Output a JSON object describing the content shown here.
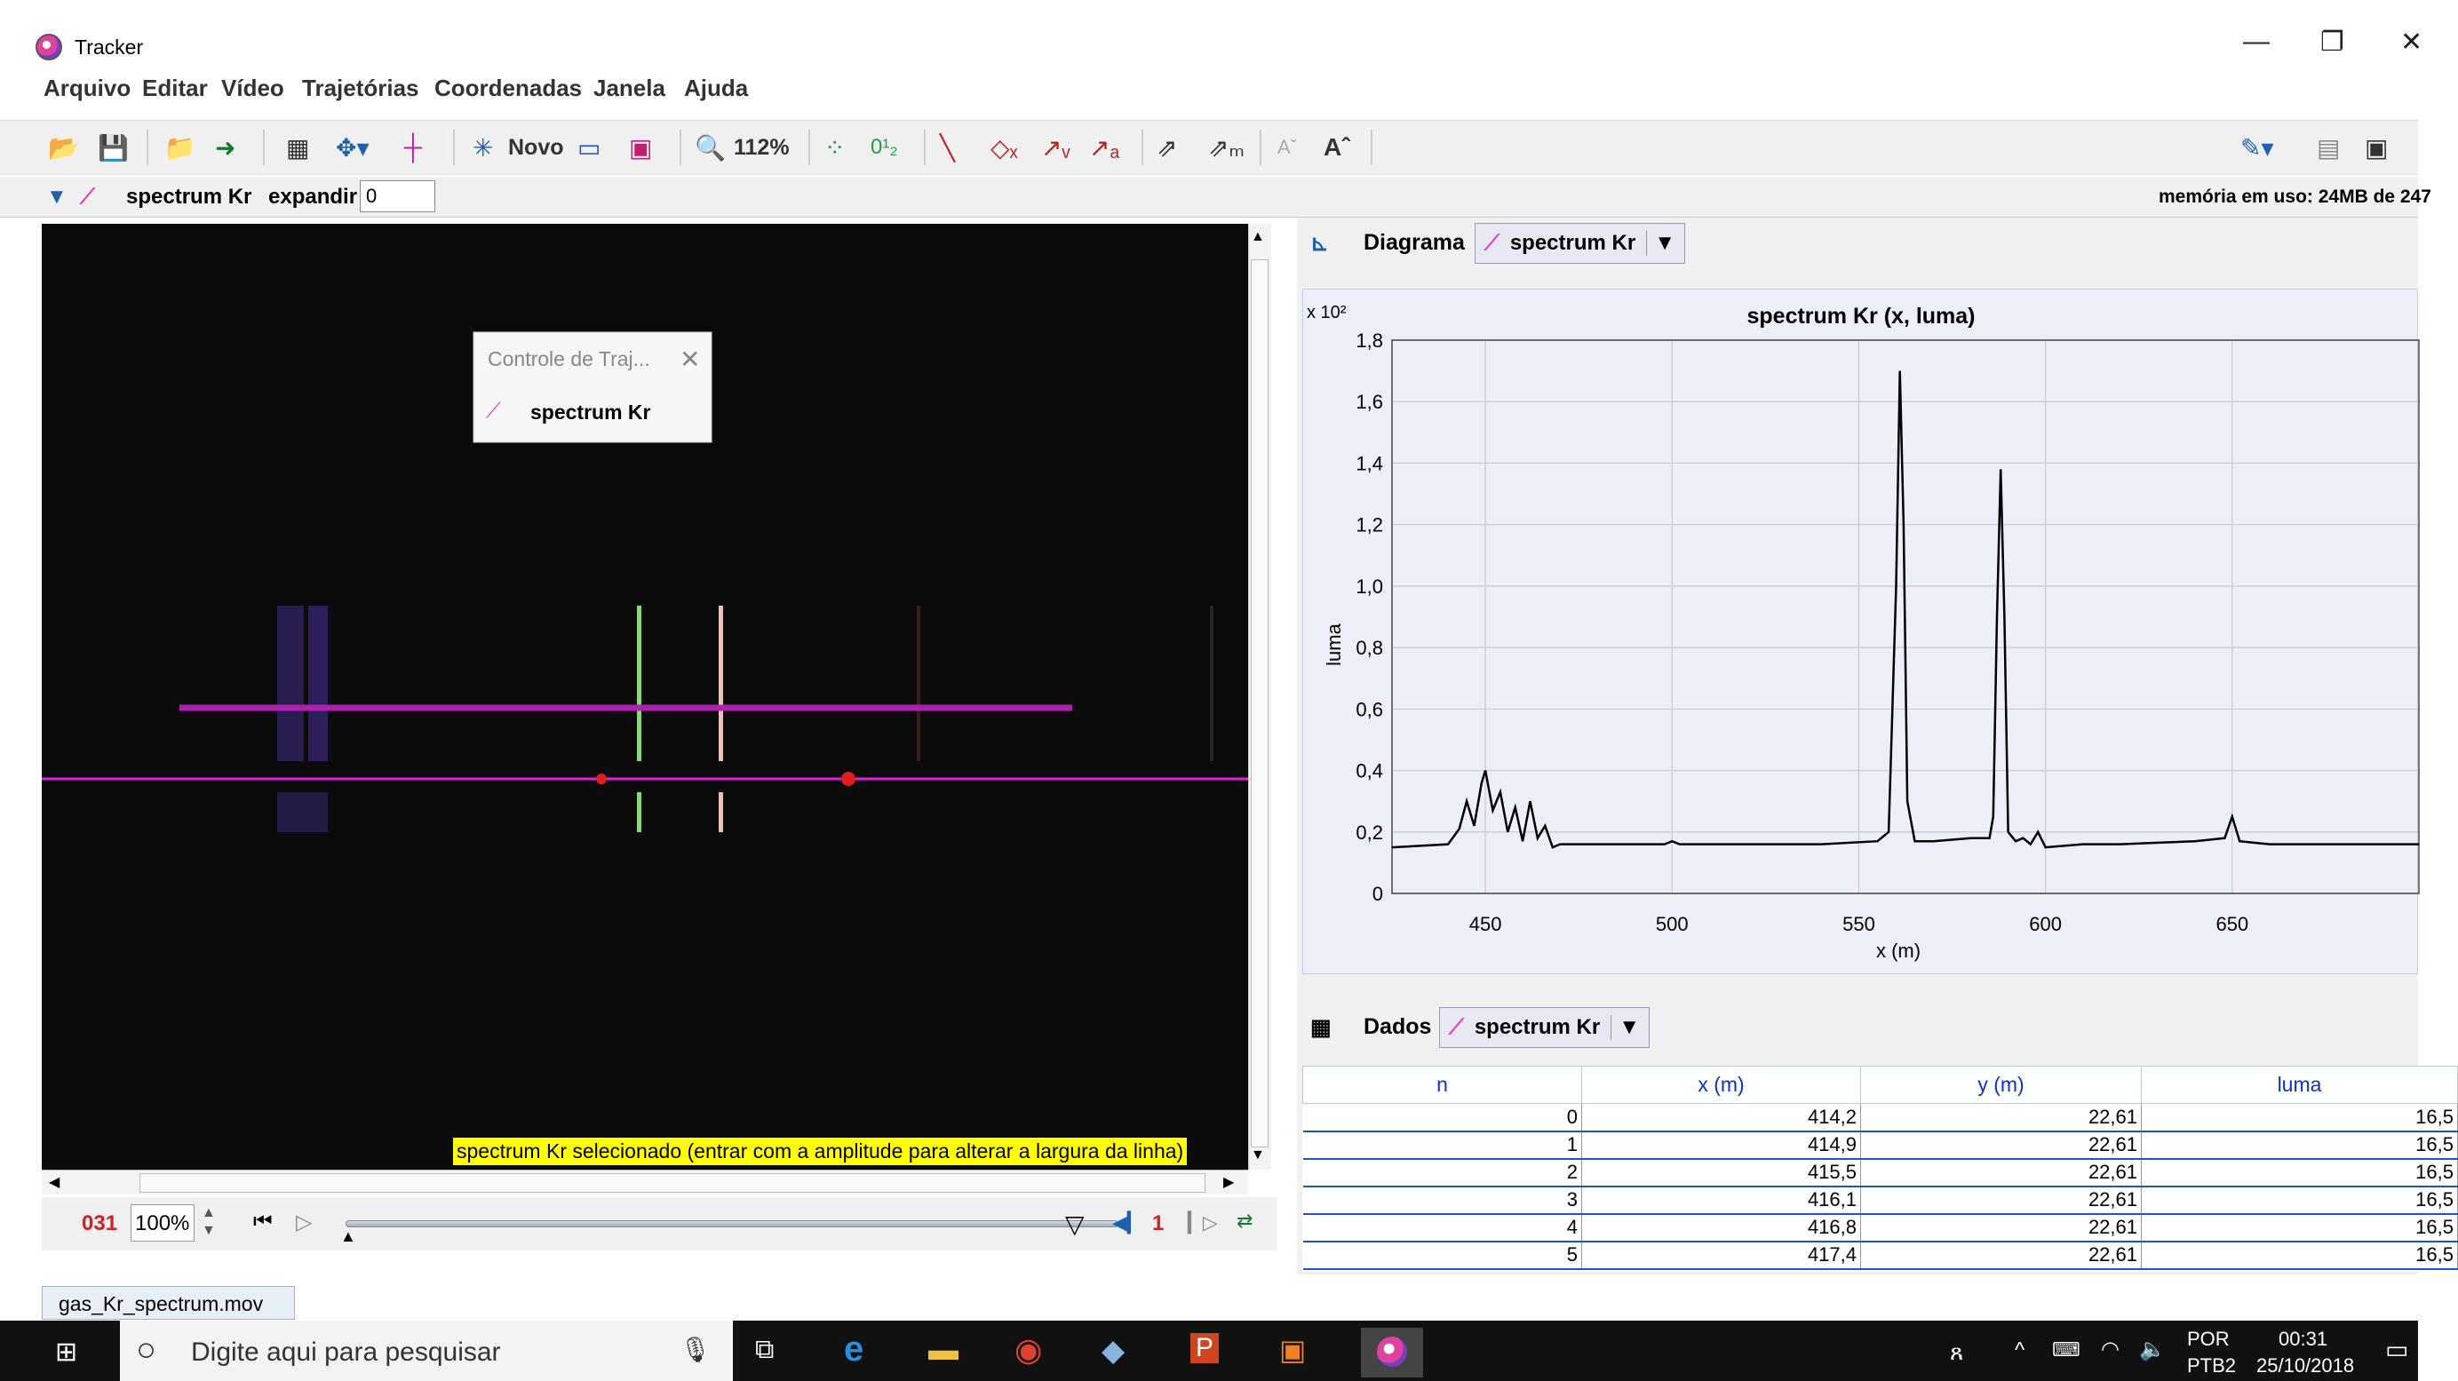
{
  "window": {
    "title": "Tracker",
    "minimize_icon": "—",
    "restore_icon": "❐",
    "close_icon": "✕"
  },
  "menu": [
    "Arquivo",
    "Editar",
    "Vídeo",
    "Trajetórias",
    "Coordenadas",
    "Janela",
    "Ajuda"
  ],
  "toolbar": {
    "new_label": "Novo",
    "zoom": "112%"
  },
  "trackbar": {
    "track_name": "spectrum Kr",
    "expand_label": "expandir",
    "expand_value": "0",
    "memory": "memória em uso: 24MB de 247"
  },
  "video": {
    "popup_title": "Controle de Traj...",
    "popup_item": "spectrum Kr",
    "status_message": "spectrum Kr selecionado (entrar com a amplitude para alterar a largura da linha)"
  },
  "player": {
    "frame": "031",
    "zoom": "100%",
    "step": "1"
  },
  "file_tab": "gas_Kr_spectrum.mov",
  "plot_panel": {
    "label": "Diagrama",
    "track": "spectrum Kr"
  },
  "chart_data": {
    "type": "line",
    "title": "spectrum Kr (x, luma)",
    "xlabel": "x (m)",
    "ylabel": "luma",
    "y_multiplier": "x 10²",
    "xlim": [
      425,
      700
    ],
    "ylim": [
      0,
      1.8
    ],
    "x_ticks": [
      "450",
      "500",
      "550",
      "600",
      "650"
    ],
    "y_ticks": [
      "0",
      "0,2",
      "0,4",
      "0,6",
      "0,8",
      "1,0",
      "1,2",
      "1,4",
      "1,6",
      "1,8"
    ],
    "grid": true,
    "series": [
      {
        "x": [
          425,
          440,
          443,
          445,
          447,
          449,
          450,
          452,
          454,
          456,
          458,
          460,
          462,
          464,
          466,
          468,
          470,
          480,
          490,
          498,
          500,
          502,
          520,
          540,
          555,
          558,
          560,
          561,
          562,
          563,
          565,
          570,
          580,
          585,
          586,
          587,
          588,
          589,
          590,
          592,
          594,
          596,
          598,
          600,
          610,
          620,
          640,
          648,
          650,
          652,
          660,
          680,
          700
        ],
        "y": [
          0.15,
          0.16,
          0.21,
          0.3,
          0.22,
          0.36,
          0.4,
          0.27,
          0.33,
          0.2,
          0.28,
          0.17,
          0.3,
          0.18,
          0.22,
          0.15,
          0.16,
          0.16,
          0.16,
          0.16,
          0.17,
          0.16,
          0.16,
          0.16,
          0.17,
          0.2,
          1.0,
          1.7,
          1.2,
          0.3,
          0.17,
          0.17,
          0.18,
          0.18,
          0.25,
          0.9,
          1.38,
          0.9,
          0.2,
          0.17,
          0.18,
          0.16,
          0.2,
          0.15,
          0.16,
          0.16,
          0.17,
          0.18,
          0.25,
          0.17,
          0.16,
          0.16,
          0.16
        ]
      }
    ]
  },
  "data_panel": {
    "label": "Dados",
    "track": "spectrum Kr",
    "columns": [
      "n",
      "x (m)",
      "y (m)",
      "luma"
    ],
    "rows": [
      [
        "0",
        "414,2",
        "22,61",
        "16,5"
      ],
      [
        "1",
        "414,9",
        "22,61",
        "16,5"
      ],
      [
        "2",
        "415,5",
        "22,61",
        "16,5"
      ],
      [
        "3",
        "416,1",
        "22,61",
        "16,5"
      ],
      [
        "4",
        "416,8",
        "22,61",
        "16,5"
      ],
      [
        "5",
        "417,4",
        "22,61",
        "16,5"
      ]
    ]
  },
  "taskbar": {
    "search_placeholder": "Digite aqui para pesquisar",
    "lang": "POR",
    "layout": "PTB2",
    "time": "00:31",
    "date": "25/10/2018"
  }
}
